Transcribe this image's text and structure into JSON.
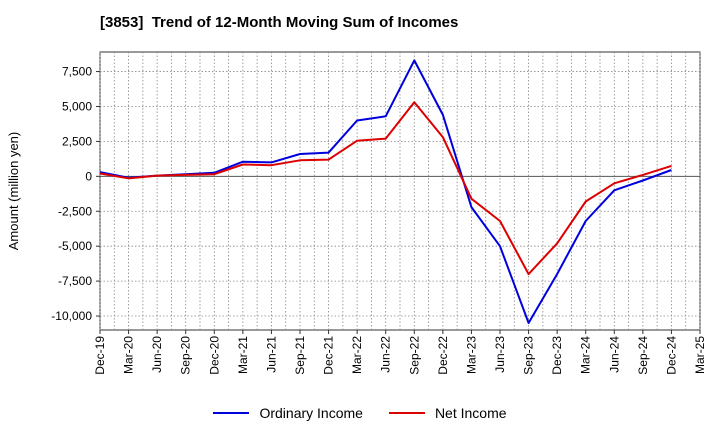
{
  "chart_data": {
    "type": "line",
    "title": "[3853]  Trend of 12-Month Moving Sum of Incomes",
    "xlabel": "",
    "ylabel": "Amount (million yen)",
    "categories": [
      "Dec-19",
      "Mar-20",
      "Jun-20",
      "Sep-20",
      "Dec-20",
      "Mar-21",
      "Jun-21",
      "Sep-21",
      "Dec-21",
      "Mar-22",
      "Jun-22",
      "Sep-22",
      "Dec-22",
      "Mar-23",
      "Jun-23",
      "Sep-23",
      "Dec-23",
      "Mar-24",
      "Jun-24",
      "Sep-24",
      "Dec-24",
      "Mar-25"
    ],
    "yticks": [
      7500,
      5000,
      2500,
      0,
      -2500,
      -5000,
      -7500,
      -10000
    ],
    "ytick_labels": [
      "7,500",
      "5,000",
      "2,500",
      "0",
      "-2,500",
      "-5,000",
      "-7,500",
      "-10,000"
    ],
    "ylim": [
      -11000,
      8900
    ],
    "grid": true,
    "legend_position": "bottom",
    "series": [
      {
        "name": "Ordinary Income",
        "color": "#0000dd",
        "values": [
          300,
          -100,
          50,
          150,
          250,
          1050,
          1000,
          1600,
          1700,
          4000,
          4300,
          8300,
          4400,
          -2200,
          -5000,
          -10500,
          -7000,
          -3200,
          -1000,
          -300,
          450,
          null
        ]
      },
      {
        "name": "Net Income",
        "color": "#dd0000",
        "values": [
          200,
          -150,
          50,
          100,
          150,
          850,
          800,
          1150,
          1200,
          2550,
          2700,
          5300,
          2800,
          -1600,
          -3200,
          -7000,
          -4800,
          -1800,
          -500,
          100,
          750,
          null
        ]
      }
    ]
  }
}
